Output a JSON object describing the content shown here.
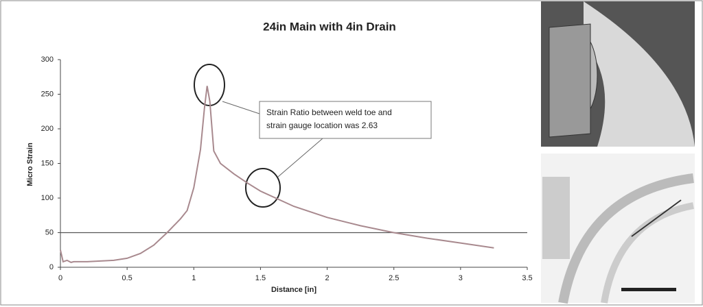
{
  "chart_data": {
    "type": "line",
    "title": "24in Main with 4in Drain",
    "xlabel": "Distance  [in]",
    "ylabel": "Micro Strain",
    "annotation": [
      "Strain Ratio between weld toe and",
      "strain gauge location was  2.63"
    ],
    "x": [
      0,
      0.02,
      0.05,
      0.08,
      0.1,
      0.2,
      0.3,
      0.4,
      0.5,
      0.6,
      0.7,
      0.8,
      0.9,
      0.95,
      1.0,
      1.05,
      1.08,
      1.1,
      1.12,
      1.15,
      1.2,
      1.3,
      1.4,
      1.5,
      1.75,
      2.0,
      2.25,
      2.5,
      2.75,
      3.0,
      3.25
    ],
    "series": [
      {
        "color": "#a8898e",
        "values": [
          25,
          8,
          10,
          7,
          8,
          8,
          9,
          10,
          13,
          20,
          32,
          50,
          70,
          82,
          115,
          170,
          230,
          262,
          240,
          168,
          150,
          135,
          122,
          110,
          88,
          72,
          60,
          50,
          42,
          35,
          28
        ]
      }
    ],
    "reference_line": 50,
    "xlim": [
      0,
      3.5
    ],
    "xticks": [
      0,
      0.5,
      1,
      1.5,
      2,
      2.5,
      3,
      3.5
    ],
    "ylim": [
      0,
      300
    ],
    "yticks": [
      0,
      50,
      100,
      150,
      200,
      250,
      300
    ]
  }
}
